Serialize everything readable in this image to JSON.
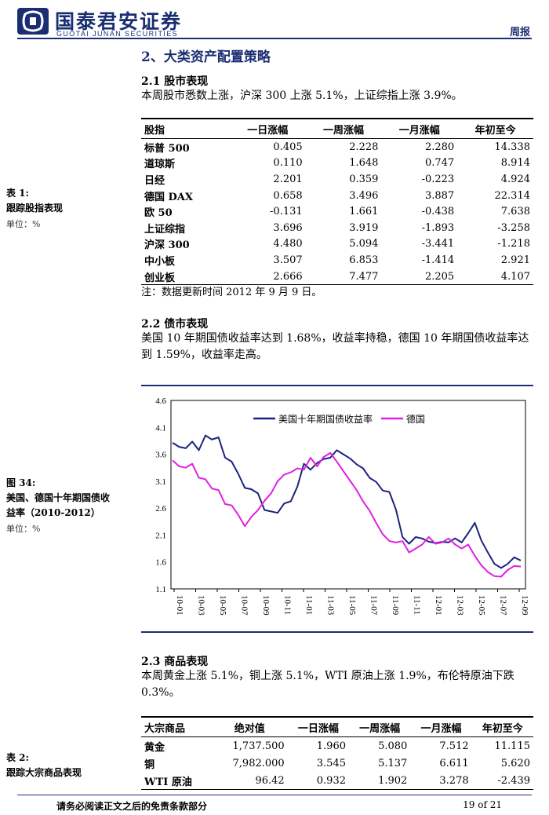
{
  "header": {
    "brand_cn": "国泰君安证券",
    "brand_en": "GUOTAI JUNAN SECURITIES",
    "report_type": "周报",
    "brand_color": "#1a2f72"
  },
  "section": {
    "title": "2、大类资产配置策略"
  },
  "stock": {
    "subtitle": "2.1 股市表现",
    "text": "本周股市悉数上涨，沪深 300 上涨 5.1%，上证综指上涨 3.9%。",
    "side_label_1": "表 1:",
    "side_label_2": "跟踪股指表现",
    "unit": "单位：%",
    "headers": [
      "股指",
      "一日涨幅",
      "一周涨幅",
      "一月涨幅",
      "年初至今"
    ],
    "rows": [
      [
        "标普 500",
        "0.405",
        "2.228",
        "2.280",
        "14.338"
      ],
      [
        "道琼斯",
        "0.110",
        "1.648",
        "0.747",
        "8.914"
      ],
      [
        "日经",
        "2.201",
        "0.359",
        "-0.223",
        "4.924"
      ],
      [
        "德国 DAX",
        "0.658",
        "3.496",
        "3.887",
        "22.314"
      ],
      [
        "欧 50",
        "-0.131",
        "1.661",
        "-0.438",
        "7.638"
      ],
      [
        "上证综指",
        "3.696",
        "3.919",
        "-1.893",
        "-3.258"
      ],
      [
        "沪深 300",
        "4.480",
        "5.094",
        "-3.441",
        "-1.218"
      ],
      [
        "中小板",
        "3.507",
        "6.853",
        "-1.414",
        "2.921"
      ],
      [
        "创业板",
        "2.666",
        "7.477",
        "2.205",
        "4.107"
      ]
    ],
    "note": "注：数据更新时间 2012 年 9 月 9 日。"
  },
  "bond": {
    "subtitle": "2.2 债市表现",
    "text": "美国 10 年期国债收益率达到 1.68%，收益率持稳，德国 10 年期国债收益率达到 1.59%，收益率走高。",
    "side_label_1": "图 34:",
    "side_label_2": "美国、德国十年期国债收",
    "side_label_3": "益率（2010-2012）",
    "unit": "单位：%"
  },
  "chart_data": {
    "type": "line",
    "title": "",
    "xlabel": "",
    "ylabel": "",
    "ylim": [
      1.1,
      4.6
    ],
    "yticks": [
      "4.6",
      "4.1",
      "3.6",
      "3.1",
      "2.6",
      "2.1",
      "1.6",
      "1.1"
    ],
    "xticks": [
      "10-01",
      "10-03",
      "10-05",
      "10-07",
      "10-09",
      "10-11",
      "11-01",
      "11-03",
      "11-05",
      "11-07",
      "11-09",
      "11-11",
      "12-01",
      "12-03",
      "12-05",
      "12-07",
      "12-09"
    ],
    "legend_position": "top-right",
    "series": [
      {
        "name": "美国十年期国债收益率",
        "color": "#1a237e",
        "values": [
          3.85,
          3.75,
          3.7,
          3.8,
          3.7,
          3.95,
          3.85,
          3.95,
          3.55,
          3.45,
          3.2,
          3.0,
          2.95,
          2.85,
          2.6,
          2.55,
          2.5,
          2.65,
          2.75,
          3.0,
          3.4,
          3.35,
          3.45,
          3.5,
          3.5,
          3.7,
          3.6,
          3.5,
          3.45,
          3.35,
          3.15,
          3.05,
          2.95,
          2.9,
          2.55,
          2.1,
          1.95,
          2.05,
          2.0,
          2.0,
          1.95,
          1.95,
          2.0,
          2.05,
          1.95,
          2.1,
          2.35,
          2.0,
          1.75,
          1.6,
          1.5,
          1.55,
          1.65,
          1.65
        ]
      },
      {
        "name": "德国",
        "color": "#e020e0",
        "values": [
          3.45,
          3.4,
          3.35,
          3.4,
          3.2,
          3.15,
          2.95,
          2.9,
          2.7,
          2.65,
          2.45,
          2.3,
          2.45,
          2.55,
          2.7,
          2.9,
          3.1,
          3.2,
          3.3,
          3.35,
          3.3,
          3.5,
          3.4,
          3.55,
          3.6,
          3.5,
          3.3,
          3.1,
          2.9,
          2.75,
          2.55,
          2.3,
          2.15,
          2.0,
          1.95,
          1.95,
          1.8,
          1.85,
          1.9,
          2.1,
          1.95,
          1.95,
          2.0,
          1.95,
          1.85,
          1.9,
          1.75,
          1.55,
          1.4,
          1.3,
          1.35,
          1.45,
          1.5,
          1.55
        ]
      }
    ]
  },
  "commodity": {
    "subtitle": "2.3 商品表现",
    "text": "本周黄金上涨 5.1%，铜上涨 5.1%，WTI 原油上涨 1.9%，布伦特原油下跌 0.3%。",
    "side_label_1": "表 2:",
    "side_label_2": "跟踪大宗商品表现",
    "headers": [
      "大宗商品",
      "绝对值",
      "一日涨幅",
      "一周涨幅",
      "一月涨幅",
      "年初至今"
    ],
    "rows": [
      [
        "黄金",
        "1,737.500",
        "1.960",
        "5.080",
        "7.512",
        "11.115"
      ],
      [
        "铜",
        "7,982.000",
        "3.545",
        "5.137",
        "6.611",
        "5.620"
      ],
      [
        "WTI 原油",
        "96.42",
        "0.932",
        "1.902",
        "3.278",
        "-2.439"
      ]
    ]
  },
  "footer": {
    "disclaimer": "请务必阅读正文之后的免责条款部分",
    "page": "19 of 21"
  }
}
